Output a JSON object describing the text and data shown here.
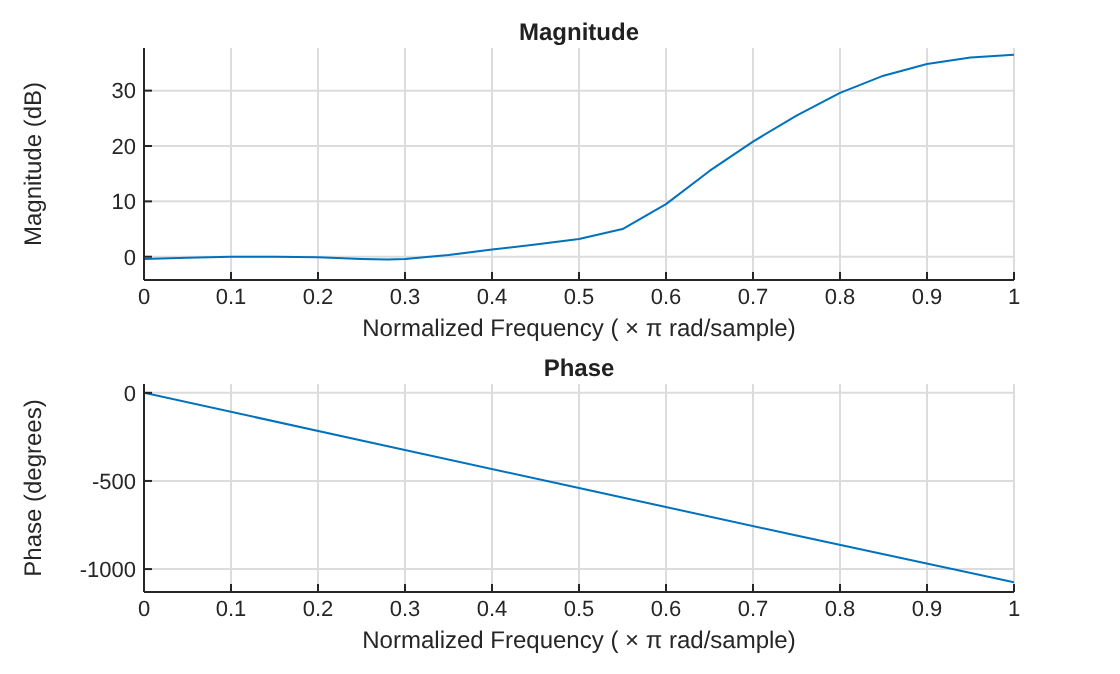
{
  "chart_data": [
    {
      "type": "line",
      "title": "Magnitude",
      "xlabel": "Normalized Frequency  ( × π rad/sample)",
      "ylabel": "Magnitude (dB)",
      "x": [
        0,
        0.05,
        0.1,
        0.15,
        0.2,
        0.25,
        0.28,
        0.3,
        0.35,
        0.4,
        0.45,
        0.5,
        0.55,
        0.6,
        0.65,
        0.7,
        0.75,
        0.8,
        0.85,
        0.9,
        0.95,
        1
      ],
      "series": [
        {
          "color": "#0072bd",
          "values": [
            -0.4,
            -0.2,
            0,
            0,
            -0.1,
            -0.4,
            -0.5,
            -0.4,
            0.3,
            1.3,
            2.2,
            3.2,
            5,
            9.5,
            15.5,
            20.8,
            25.5,
            29.6,
            32.7,
            34.8,
            36,
            36.5
          ]
        }
      ],
      "xlim": [
        0,
        1
      ],
      "xticks": [
        0,
        0.1,
        0.2,
        0.3,
        0.4,
        0.5,
        0.6,
        0.7,
        0.8,
        0.9,
        1
      ],
      "ylim": [
        -4.2,
        37.7
      ],
      "yticks": [
        0,
        10,
        20,
        30
      ],
      "grid": true,
      "marker": "none",
      "line_style": "solid"
    },
    {
      "type": "line",
      "title": "Phase",
      "xlabel": "Normalized Frequency  ( × π rad/sample)",
      "ylabel": "Phase (degrees)",
      "x": [
        0,
        0.25,
        0.5,
        0.75,
        1
      ],
      "series": [
        {
          "color": "#0072bd",
          "values": [
            0,
            -270,
            -540,
            -810,
            -1075
          ]
        }
      ],
      "xlim": [
        0,
        1
      ],
      "xticks": [
        0,
        0.1,
        0.2,
        0.3,
        0.4,
        0.5,
        0.6,
        0.7,
        0.8,
        0.9,
        1
      ],
      "ylim": [
        -1130,
        50
      ],
      "yticks": [
        0,
        -500,
        -1000
      ],
      "grid": true,
      "marker": "none",
      "line_style": "solid"
    }
  ]
}
